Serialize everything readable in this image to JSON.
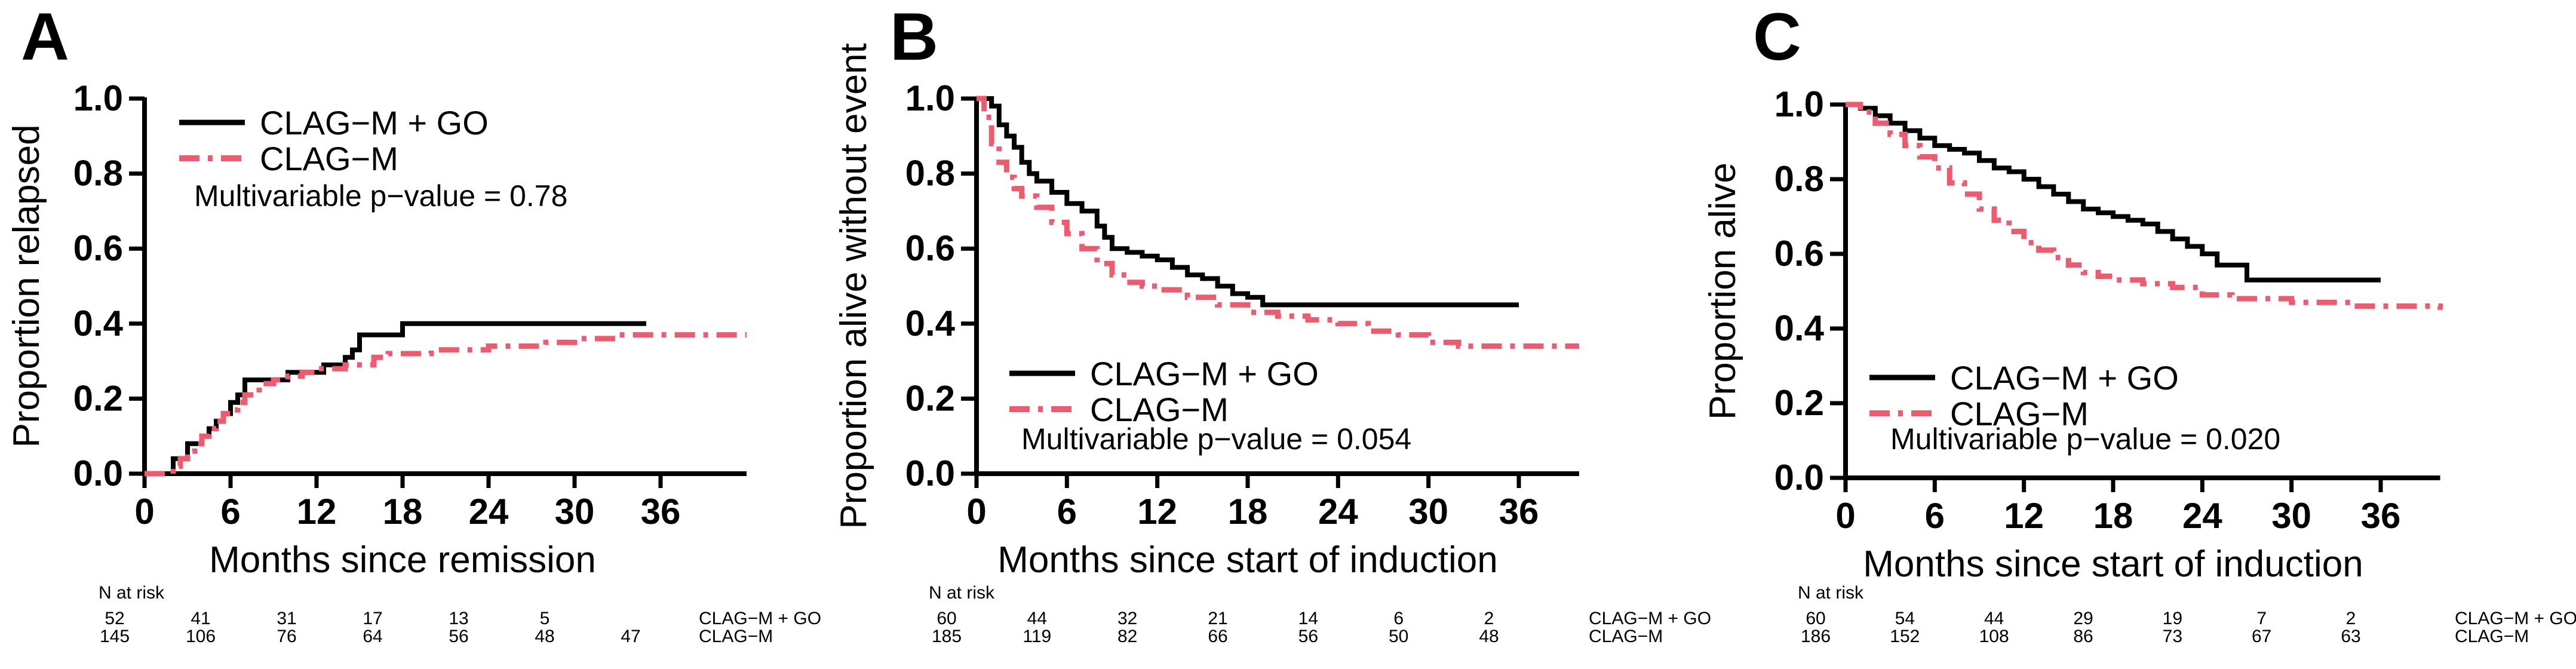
{
  "panels": [
    {
      "letter": "A",
      "ylabel": "Proportion relapsed",
      "xlabel": "Months since remission",
      "annotation": "Multivariable p−value = 0.78",
      "legend_pos": "top-left",
      "annot_pos": "top-left",
      "risk": {
        "title": "N at risk",
        "rows": [
          {
            "label": "CLAG−M + GO",
            "counts": [
              "52",
              "41",
              "31",
              "17",
              "13",
              "5",
              ""
            ]
          },
          {
            "label": "CLAG−M",
            "counts": [
              "145",
              "106",
              "76",
              "64",
              "56",
              "48",
              "47"
            ]
          }
        ]
      }
    },
    {
      "letter": "B",
      "ylabel": "Proportion alive without event",
      "xlabel": "Months since start of induction",
      "annotation": "Multivariable p−value = 0.054",
      "legend_pos": "bottom-left",
      "annot_pos": "bottom-left",
      "risk": {
        "title": "N at risk",
        "rows": [
          {
            "label": "CLAG−M + GO",
            "counts": [
              "60",
              "44",
              "32",
              "21",
              "14",
              "6",
              "2"
            ]
          },
          {
            "label": "CLAG−M",
            "counts": [
              "185",
              "119",
              "82",
              "66",
              "56",
              "50",
              "48"
            ]
          }
        ]
      }
    },
    {
      "letter": "C",
      "ylabel": "Proportion alive",
      "xlabel": "Months since start of induction",
      "annotation": "Multivariable p−value = 0.020",
      "legend_pos": "bottom-left",
      "annot_pos": "bottom-left",
      "risk": {
        "title": "N at risk",
        "rows": [
          {
            "label": "CLAG−M + GO",
            "counts": [
              "60",
              "54",
              "44",
              "29",
              "19",
              "7",
              "2"
            ]
          },
          {
            "label": "CLAG−M",
            "counts": [
              "186",
              "152",
              "108",
              "86",
              "73",
              "67",
              "63"
            ]
          }
        ]
      }
    }
  ],
  "colors": {
    "go": "#000000",
    "clagm": "#f05a6e"
  },
  "chart_data": [
    {
      "type": "line",
      "step": true,
      "xticks": [
        0,
        6,
        12,
        18,
        24,
        30,
        36
      ],
      "yticks": [
        "0.0",
        "0.2",
        "0.4",
        "0.6",
        "0.8",
        "1.0"
      ],
      "xlim": [
        0,
        42
      ],
      "ylim": [
        0,
        1
      ],
      "series": [
        {
          "name": "CLAG−M + GO",
          "style": "solid",
          "x": [
            0,
            1.5,
            2,
            3,
            3.5,
            4,
            4.5,
            5,
            5.5,
            6,
            6.5,
            7,
            9,
            10,
            11,
            12.5,
            14,
            14.5,
            15,
            17,
            18,
            35
          ],
          "y": [
            0,
            0,
            0.04,
            0.08,
            0.08,
            0.1,
            0.12,
            0.14,
            0.16,
            0.19,
            0.21,
            0.25,
            0.25,
            0.27,
            0.27,
            0.29,
            0.31,
            0.33,
            0.37,
            0.37,
            0.4,
            0.4
          ]
        },
        {
          "name": "CLAG−M",
          "style": "dashed",
          "x": [
            0,
            1.5,
            2,
            2.5,
            3,
            3.5,
            4,
            4.5,
            5,
            5.5,
            6,
            6.5,
            7,
            8,
            9,
            10,
            11,
            12,
            14,
            16,
            17,
            20,
            24,
            28,
            30,
            33,
            36,
            42
          ],
          "y": [
            0,
            0,
            0.02,
            0.04,
            0.06,
            0.08,
            0.1,
            0.12,
            0.14,
            0.16,
            0.17,
            0.19,
            0.21,
            0.24,
            0.25,
            0.26,
            0.27,
            0.28,
            0.29,
            0.31,
            0.32,
            0.33,
            0.34,
            0.35,
            0.36,
            0.37,
            0.37,
            0.37
          ]
        }
      ]
    },
    {
      "type": "line",
      "step": true,
      "xticks": [
        0,
        6,
        12,
        18,
        24,
        30,
        36
      ],
      "yticks": [
        "0.0",
        "0.2",
        "0.4",
        "0.6",
        "0.8",
        "1.0"
      ],
      "xlim": [
        0,
        40
      ],
      "ylim": [
        0,
        1
      ],
      "series": [
        {
          "name": "CLAG−M + GO",
          "style": "solid",
          "x": [
            0,
            1,
            1.5,
            2,
            2.5,
            3,
            3.5,
            4,
            5,
            6,
            7,
            8,
            8.5,
            9,
            10,
            11,
            12,
            13,
            14,
            15,
            16,
            17,
            18,
            19,
            36
          ],
          "y": [
            1,
            0.98,
            0.93,
            0.9,
            0.87,
            0.83,
            0.8,
            0.78,
            0.75,
            0.72,
            0.7,
            0.66,
            0.63,
            0.6,
            0.59,
            0.58,
            0.57,
            0.55,
            0.53,
            0.52,
            0.5,
            0.48,
            0.47,
            0.45,
            0.45
          ]
        },
        {
          "name": "CLAG−M",
          "style": "dashed",
          "x": [
            0,
            0.5,
            1,
            1.5,
            2,
            2.5,
            3,
            4,
            5,
            6,
            7,
            8,
            9,
            10,
            11,
            12,
            14,
            16,
            18,
            20,
            22,
            24,
            26,
            28,
            30,
            32,
            40
          ],
          "y": [
            1,
            0.95,
            0.88,
            0.83,
            0.79,
            0.76,
            0.74,
            0.71,
            0.67,
            0.64,
            0.6,
            0.56,
            0.53,
            0.51,
            0.5,
            0.49,
            0.47,
            0.45,
            0.43,
            0.42,
            0.41,
            0.4,
            0.38,
            0.37,
            0.35,
            0.34,
            0.34
          ]
        }
      ]
    },
    {
      "type": "line",
      "step": true,
      "xticks": [
        0,
        6,
        12,
        18,
        24,
        30,
        36
      ],
      "yticks": [
        "0.0",
        "0.2",
        "0.4",
        "0.6",
        "0.8",
        "1.0"
      ],
      "xlim": [
        0,
        40
      ],
      "ylim": [
        0,
        1
      ],
      "series": [
        {
          "name": "CLAG−M + GO",
          "style": "solid",
          "x": [
            0,
            1,
            2,
            3,
            4,
            5,
            6,
            7,
            8,
            9,
            10,
            11,
            12,
            13,
            14,
            15,
            16,
            17,
            18,
            19,
            20,
            21,
            22,
            23,
            24,
            25,
            27,
            36
          ],
          "y": [
            1,
            0.99,
            0.97,
            0.95,
            0.93,
            0.91,
            0.89,
            0.88,
            0.87,
            0.85,
            0.83,
            0.82,
            0.8,
            0.78,
            0.76,
            0.74,
            0.72,
            0.71,
            0.7,
            0.69,
            0.68,
            0.66,
            0.64,
            0.62,
            0.6,
            0.57,
            0.53,
            0.53
          ]
        },
        {
          "name": "CLAG−M",
          "style": "dashed",
          "x": [
            0,
            1,
            2,
            3,
            4,
            5,
            6,
            7,
            8,
            9,
            10,
            11,
            12,
            13,
            14,
            15,
            16,
            17,
            18,
            20,
            22,
            24,
            26,
            28,
            30,
            32,
            34,
            36,
            40
          ],
          "y": [
            1,
            0.98,
            0.95,
            0.92,
            0.89,
            0.86,
            0.83,
            0.79,
            0.76,
            0.72,
            0.69,
            0.66,
            0.63,
            0.61,
            0.59,
            0.57,
            0.55,
            0.54,
            0.53,
            0.52,
            0.51,
            0.49,
            0.48,
            0.48,
            0.47,
            0.47,
            0.46,
            0.46,
            0.45
          ]
        }
      ]
    }
  ]
}
